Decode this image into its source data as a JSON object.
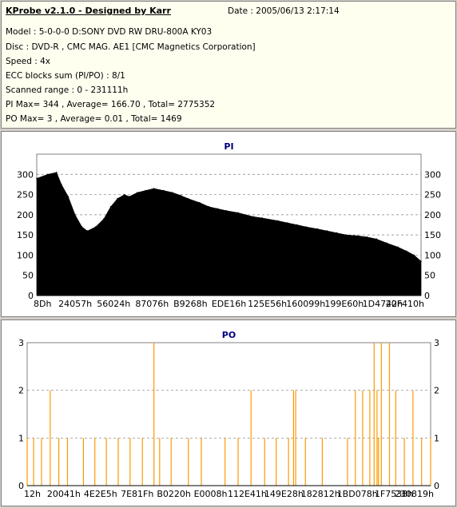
{
  "header": {
    "title": "KProbe v2.1.0 - Designed by Karr",
    "date": "Date : 2005/06/13 2:17:14",
    "model": "Model : 5-0-0-0 D:SONY    DVD RW DRU-800A  KY03",
    "disc": "Disc : DVD-R , CMC MAG. AE1 [CMC Magnetics Corporation]",
    "speed": "Speed : 4x",
    "ecc": "ECC blocks sum (PI/PO) : 8/1",
    "scanned": "Scanned range : 0 - 231111h",
    "pi_stats": "PI Max= 344 , Average= 166.70 , Total= 2775352",
    "po_stats": "PO Max= 3 , Average= 0.01 , Total= 1469"
  },
  "chart_data": [
    {
      "type": "area",
      "title": "PI",
      "color": "#000000",
      "ylim": [
        0,
        350
      ],
      "yticks": [
        0,
        50,
        100,
        150,
        200,
        250,
        300
      ],
      "xticks": [
        "8Dh",
        "24057h",
        "56024h",
        "87076h",
        "B9268h",
        "EDE16h",
        "125E56h",
        "160099h",
        "199E60h",
        "1D4742h",
        "20F410h"
      ],
      "grid": true,
      "x": [
        "8Dh",
        "10000h",
        "1D000h",
        "24057h",
        "2E000h",
        "38000h",
        "42000h",
        "4A000h",
        "56024h",
        "62000h",
        "6C000h",
        "76000h",
        "80000h",
        "87076h",
        "93000h",
        "9F000h",
        "AB000h",
        "B9268h",
        "C6000h",
        "D2000h",
        "DD000h",
        "EDE16h",
        "FB000h",
        "108000h",
        "115000h",
        "125E56h",
        "131000h",
        "13D000h",
        "149000h",
        "160099h",
        "16E000h",
        "17C000h",
        "189000h",
        "199E60h",
        "1A8000h",
        "1B6000h",
        "1C4000h",
        "1D4742h",
        "1E2000h",
        "1F0000h",
        "1FF000h",
        "20F410h",
        "21C000h",
        "227000h",
        "231111h"
      ],
      "values": [
        290,
        300,
        305,
        275,
        245,
        200,
        170,
        160,
        170,
        190,
        220,
        240,
        250,
        245,
        255,
        260,
        265,
        260,
        255,
        248,
        240,
        230,
        220,
        215,
        210,
        205,
        200,
        195,
        192,
        185,
        180,
        175,
        170,
        165,
        160,
        155,
        150,
        148,
        145,
        140,
        130,
        120,
        110,
        100,
        85
      ]
    },
    {
      "type": "bar",
      "title": "PO",
      "color": "#ff9900",
      "ylim": [
        0,
        3
      ],
      "yticks": [
        0,
        1,
        2,
        3
      ],
      "xticks": [
        "12h",
        "20041h",
        "4E2E5h",
        "7E81Fh",
        "B0220h",
        "E0008h",
        "112E41h",
        "149E28h",
        "182812h",
        "1BD078h",
        "1F7538h",
        "230819h"
      ],
      "grid": true,
      "x": [
        "12h",
        "9000h",
        "14000h",
        "20041h",
        "2C000h",
        "38000h",
        "4E2E5h",
        "5E000h",
        "6E000h",
        "7E81Fh",
        "8F000h",
        "A0000h",
        "B0220h",
        "B8000h",
        "C8000h",
        "E0008h",
        "F2000h",
        "112E41h",
        "125000h",
        "137000h",
        "149E28h",
        "15A000h",
        "16B000h",
        "172000h",
        "175000h",
        "182812h",
        "19A000h",
        "1BD078h",
        "1C8000h",
        "1D2000h",
        "1DC000h",
        "1E2000h",
        "1E6000h",
        "1E8000h",
        "1EC000h",
        "1F7538h",
        "200000h",
        "20C000h",
        "218000h",
        "224000h",
        "230819h"
      ],
      "values": [
        1,
        1,
        1,
        2,
        1,
        1,
        1,
        1,
        1,
        1,
        1,
        1,
        3,
        1,
        1,
        1,
        1,
        1,
        1,
        2,
        1,
        1,
        1,
        2,
        2,
        1,
        1,
        1,
        2,
        2,
        2,
        3,
        2,
        1,
        3,
        3,
        2,
        1,
        2,
        1,
        1
      ]
    }
  ]
}
